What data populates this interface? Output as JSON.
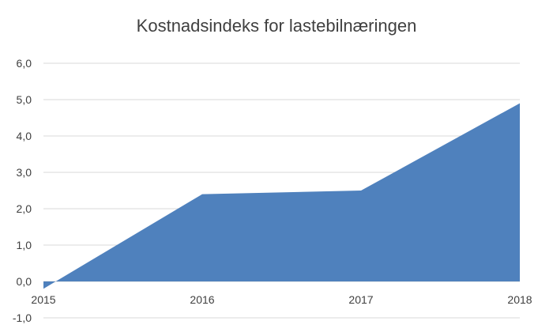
{
  "chart_data": {
    "type": "area",
    "title": "Kostnadsindeks for lastebilnæringen",
    "categories": [
      "2015",
      "2016",
      "2017",
      "2018"
    ],
    "values": [
      -0.2,
      2.4,
      2.5,
      4.9
    ],
    "ylim": [
      -1,
      6
    ],
    "yticks": [
      "-1,0",
      "0,0",
      "1,0",
      "2,0",
      "3,0",
      "4,0",
      "5,0",
      "6,0"
    ],
    "grid": true,
    "color": "#4F81BD"
  }
}
